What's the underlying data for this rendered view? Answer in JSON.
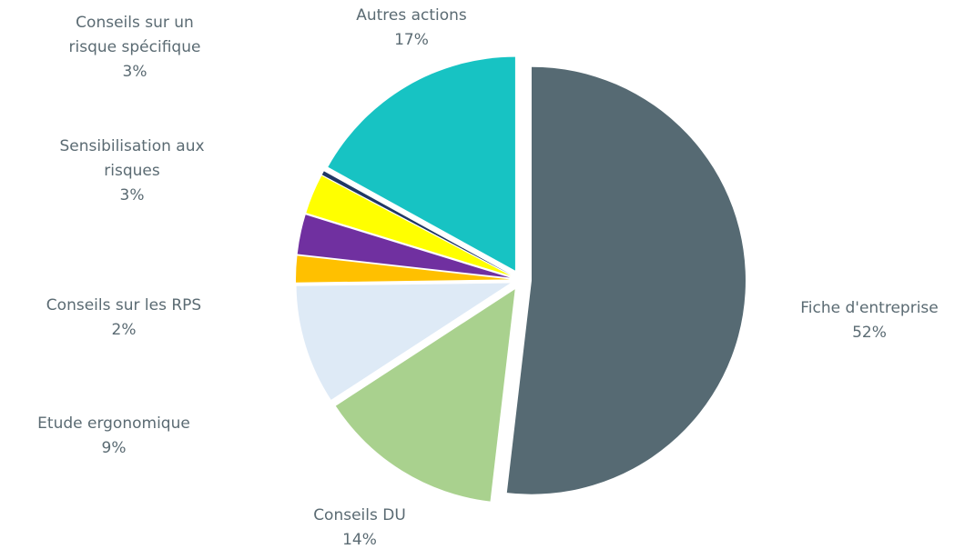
{
  "chart_data": {
    "type": "pie",
    "categories": [
      "Fiche d'entreprise",
      "Conseils DU",
      "Etude ergonomique",
      "Conseils sur les RPS",
      "Sensibilisation aux risques",
      "Conseils  sur un risque spécifique",
      null,
      "Autres actions"
    ],
    "values": [
      52,
      14,
      9,
      2,
      3,
      3,
      0.3,
      17
    ],
    "value_labels": [
      "52%",
      "14%",
      "9%",
      "2%",
      "3%",
      "3%",
      null,
      "17%"
    ],
    "colors": [
      "#566a73",
      "#a9d18e",
      "#deeaf6",
      "#ffc000",
      "#7030a0",
      "#ffff00",
      "#203864",
      "#17c3c3"
    ]
  }
}
